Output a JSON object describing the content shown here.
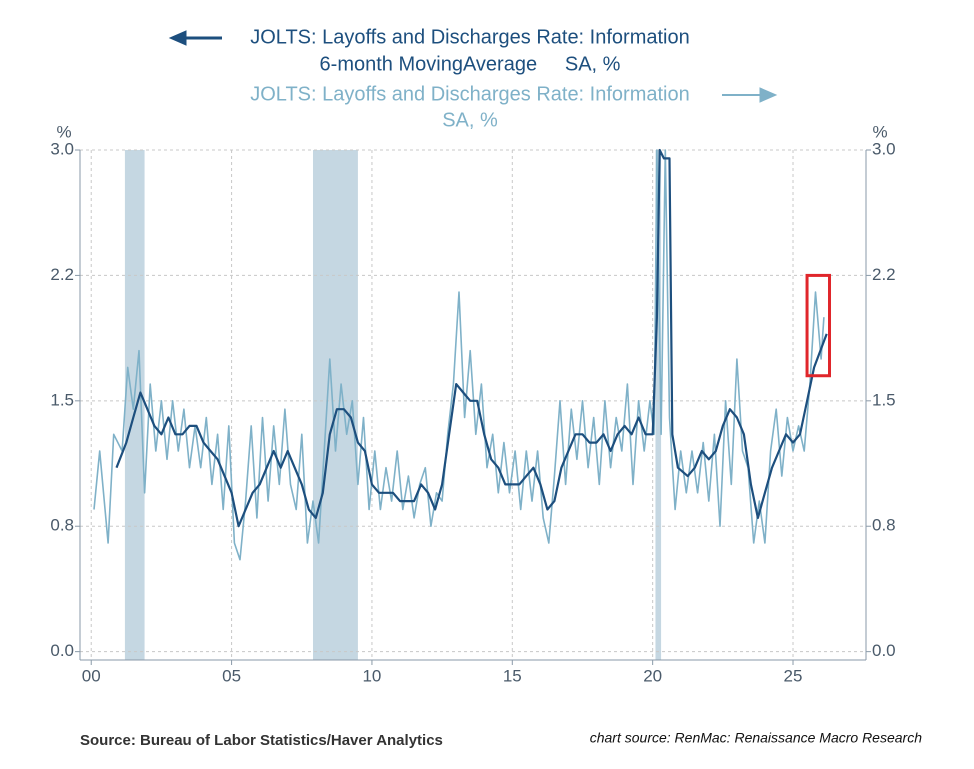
{
  "chart_data": {
    "type": "line",
    "y_label": "%",
    "y2_label": "%",
    "xlim": [
      1999.6,
      2027.6
    ],
    "xticks": [
      {
        "value": 2000,
        "label": "00"
      },
      {
        "value": 2005,
        "label": "05"
      },
      {
        "value": 2010,
        "label": "10"
      },
      {
        "value": 2015,
        "label": "15"
      },
      {
        "value": 2020,
        "label": "20"
      },
      {
        "value": 2025,
        "label": "25"
      }
    ],
    "ylim": [
      -0.05,
      3.0
    ],
    "yticks": [
      {
        "value": 0,
        "label": "0.0"
      },
      {
        "value": 0.75,
        "label": "0.8"
      },
      1.5,
      {
        "value": 2.25,
        "label": "2.2"
      },
      {
        "value": 3,
        "label": "3.0"
      }
    ],
    "y2lim": [
      -0.05,
      3.0
    ],
    "y2ticks": [
      {
        "value": 0,
        "label": "0.0"
      },
      {
        "value": 0.75,
        "label": "0.8"
      },
      1.5,
      {
        "value": 2.25,
        "label": "2.2"
      },
      {
        "value": 3,
        "label": "3.0"
      }
    ],
    "grid": true,
    "recessions": [
      [
        2001.2,
        2001.9
      ],
      [
        2007.9,
        2009.5
      ],
      [
        2020.1,
        2020.3
      ]
    ],
    "recession_color": "#c5d7e2",
    "highlight": {
      "x": [
        2025.5,
        2026.3
      ],
      "y": [
        1.65,
        2.25
      ],
      "color": "#e0262b"
    },
    "series": [
      {
        "name": "JOLTS: Layoffs and Discharges Rate: Information",
        "subtitle": "6-month MovingAverage     SA, %",
        "color": "#1d4f7e",
        "axis": "y",
        "x": [
          2000.9,
          2001.25,
          2001.5,
          2001.75,
          2002,
          2002.25,
          2002.5,
          2002.75,
          2003,
          2003.25,
          2003.5,
          2003.75,
          2004,
          2004.25,
          2004.5,
          2004.75,
          2005,
          2005.25,
          2005.5,
          2005.75,
          2006,
          2006.25,
          2006.5,
          2006.75,
          2007,
          2007.25,
          2007.5,
          2007.75,
          2008,
          2008.25,
          2008.5,
          2008.75,
          2009,
          2009.25,
          2009.5,
          2009.75,
          2010,
          2010.25,
          2010.5,
          2010.75,
          2011,
          2011.25,
          2011.5,
          2011.75,
          2012,
          2012.25,
          2012.5,
          2012.75,
          2013,
          2013.25,
          2013.5,
          2013.75,
          2014,
          2014.25,
          2014.5,
          2014.75,
          2015,
          2015.25,
          2015.5,
          2015.75,
          2016,
          2016.25,
          2016.5,
          2016.75,
          2017,
          2017.25,
          2017.5,
          2017.75,
          2018,
          2018.25,
          2018.5,
          2018.75,
          2019,
          2019.25,
          2019.5,
          2019.75,
          2020,
          2020.15,
          2020.25,
          2020.4,
          2020.6,
          2020.7,
          2020.9,
          2021.25,
          2021.5,
          2021.75,
          2022,
          2022.25,
          2022.5,
          2022.75,
          2023,
          2023.25,
          2023.5,
          2023.75,
          2024,
          2024.25,
          2024.5,
          2024.75,
          2025,
          2025.25,
          2025.5,
          2025.75,
          2026.2
        ],
        "values": [
          1.1,
          1.25,
          1.4,
          1.55,
          1.45,
          1.35,
          1.3,
          1.4,
          1.3,
          1.3,
          1.35,
          1.35,
          1.25,
          1.2,
          1.15,
          1.05,
          0.95,
          0.75,
          0.85,
          0.95,
          1.0,
          1.1,
          1.2,
          1.1,
          1.2,
          1.1,
          1.0,
          0.85,
          0.8,
          0.95,
          1.3,
          1.45,
          1.45,
          1.4,
          1.25,
          1.2,
          1.0,
          0.95,
          0.95,
          0.95,
          0.9,
          0.9,
          0.9,
          1.0,
          0.95,
          0.85,
          1.0,
          1.3,
          1.6,
          1.55,
          1.5,
          1.5,
          1.3,
          1.15,
          1.1,
          1.0,
          1.0,
          1.0,
          1.05,
          1.1,
          1.0,
          0.85,
          0.9,
          1.1,
          1.2,
          1.3,
          1.3,
          1.25,
          1.25,
          1.3,
          1.2,
          1.3,
          1.35,
          1.3,
          1.4,
          1.3,
          1.3,
          2.0,
          3.0,
          2.95,
          2.95,
          1.3,
          1.1,
          1.05,
          1.1,
          1.2,
          1.15,
          1.2,
          1.35,
          1.45,
          1.4,
          1.3,
          1.0,
          0.8,
          0.95,
          1.1,
          1.2,
          1.3,
          1.25,
          1.3,
          1.5,
          1.7,
          1.9
        ]
      },
      {
        "name": "JOLTS: Layoffs and Discharges Rate: Information",
        "subtitle": "SA, %",
        "color": "#7fb1c8",
        "axis": "y2",
        "x": [
          2000.1,
          2000.3,
          2000.6,
          2000.8,
          2001.1,
          2001.3,
          2001.5,
          2001.7,
          2001.9,
          2002.1,
          2002.3,
          2002.5,
          2002.7,
          2002.9,
          2003.1,
          2003.3,
          2003.5,
          2003.7,
          2003.9,
          2004.1,
          2004.3,
          2004.5,
          2004.7,
          2004.9,
          2005.1,
          2005.3,
          2005.5,
          2005.7,
          2005.9,
          2006.1,
          2006.3,
          2006.5,
          2006.7,
          2006.9,
          2007.1,
          2007.3,
          2007.5,
          2007.7,
          2007.9,
          2008.1,
          2008.3,
          2008.5,
          2008.7,
          2008.9,
          2009.1,
          2009.3,
          2009.5,
          2009.7,
          2009.9,
          2010.1,
          2010.3,
          2010.5,
          2010.7,
          2010.9,
          2011.1,
          2011.3,
          2011.5,
          2011.7,
          2011.9,
          2012.1,
          2012.3,
          2012.5,
          2012.7,
          2012.9,
          2013.1,
          2013.3,
          2013.5,
          2013.7,
          2013.9,
          2014.1,
          2014.3,
          2014.5,
          2014.7,
          2014.9,
          2015.1,
          2015.3,
          2015.5,
          2015.7,
          2015.9,
          2016.1,
          2016.3,
          2016.5,
          2016.7,
          2016.9,
          2017.1,
          2017.3,
          2017.5,
          2017.7,
          2017.9,
          2018.1,
          2018.3,
          2018.5,
          2018.7,
          2018.9,
          2019.1,
          2019.3,
          2019.5,
          2019.7,
          2019.9,
          2020.05,
          2020.15,
          2020.3,
          2020.45,
          2020.6,
          2020.8,
          2021.0,
          2021.2,
          2021.4,
          2021.6,
          2021.8,
          2022.0,
          2022.2,
          2022.4,
          2022.6,
          2022.8,
          2023.0,
          2023.2,
          2023.4,
          2023.6,
          2023.8,
          2024.0,
          2024.2,
          2024.4,
          2024.6,
          2024.8,
          2025.0,
          2025.2,
          2025.4,
          2025.6,
          2025.8,
          2026.0,
          2026.1
        ],
        "values": [
          0.85,
          1.2,
          0.65,
          1.3,
          1.2,
          1.7,
          1.45,
          1.8,
          0.95,
          1.6,
          1.2,
          1.5,
          1.15,
          1.5,
          1.2,
          1.45,
          1.1,
          1.35,
          1.1,
          1.4,
          1.0,
          1.3,
          0.85,
          1.35,
          0.65,
          0.55,
          0.9,
          1.35,
          0.8,
          1.4,
          0.9,
          1.35,
          1.0,
          1.45,
          1.0,
          0.85,
          1.3,
          0.65,
          0.9,
          0.65,
          1.2,
          1.75,
          1.2,
          1.6,
          1.3,
          1.5,
          1.0,
          1.4,
          0.85,
          1.2,
          0.85,
          1.1,
          0.9,
          1.2,
          0.85,
          1.05,
          0.8,
          1.0,
          1.1,
          0.75,
          0.95,
          0.9,
          1.3,
          1.6,
          2.15,
          1.4,
          1.8,
          1.3,
          1.6,
          1.1,
          1.3,
          0.95,
          1.25,
          0.95,
          1.2,
          0.85,
          1.2,
          0.9,
          1.2,
          0.8,
          0.65,
          1.05,
          1.5,
          1.0,
          1.45,
          1.15,
          1.5,
          1.1,
          1.4,
          1.0,
          1.5,
          1.1,
          1.4,
          1.2,
          1.6,
          1.0,
          1.5,
          1.2,
          1.5,
          1.3,
          3.0,
          1.3,
          3.0,
          1.4,
          0.85,
          1.2,
          0.95,
          1.2,
          0.95,
          1.25,
          0.9,
          1.3,
          0.75,
          1.5,
          1.0,
          1.75,
          1.2,
          1.1,
          0.65,
          0.9,
          0.65,
          1.2,
          1.45,
          1.05,
          1.4,
          1.2,
          1.35,
          1.2,
          1.6,
          2.15,
          1.75,
          2.0
        ]
      }
    ],
    "source": "Source:  Bureau of Labor Statistics/Haver Analytics",
    "credit": "chart source: RenMac: Renaissance Macro Research"
  }
}
